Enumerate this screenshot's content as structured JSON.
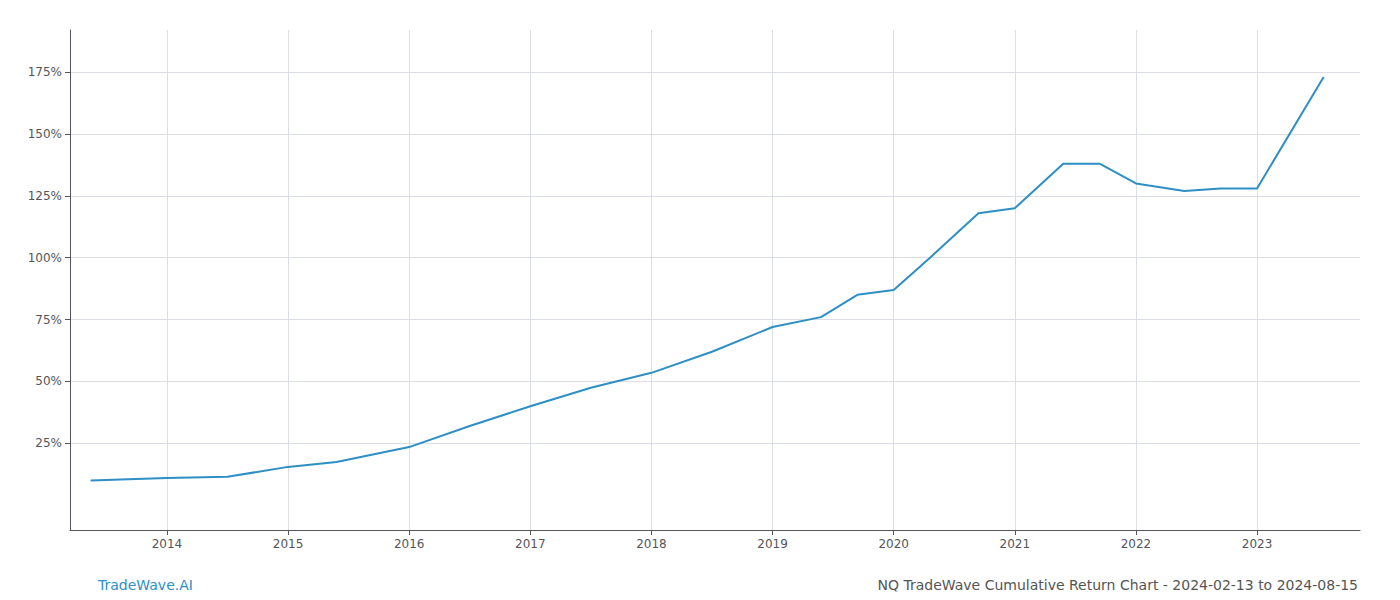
{
  "chart_data": {
    "type": "line",
    "x": [
      2013.37,
      2014.0,
      2014.5,
      2015.0,
      2015.4,
      2016.0,
      2016.5,
      2017.0,
      2017.5,
      2018.0,
      2018.5,
      2019.0,
      2019.4,
      2019.7,
      2020.0,
      2020.3,
      2020.7,
      2021.0,
      2021.4,
      2021.7,
      2022.0,
      2022.4,
      2022.7,
      2023.0,
      2023.55
    ],
    "values": [
      0.1,
      0.11,
      0.115,
      0.155,
      0.175,
      0.235,
      0.32,
      0.4,
      0.475,
      0.535,
      0.62,
      0.72,
      0.76,
      0.85,
      0.87,
      1.0,
      1.18,
      1.2,
      1.38,
      1.38,
      1.3,
      1.27,
      1.28,
      1.28,
      1.73
    ],
    "color": "#2d8fc4",
    "xlim": [
      2013.2,
      2023.85
    ],
    "ylim": [
      -0.1,
      1.92
    ],
    "xticks": [
      2014,
      2015,
      2016,
      2017,
      2018,
      2019,
      2020,
      2021,
      2022,
      2023
    ],
    "yticks": [
      {
        "value": 0.25,
        "label": "25%"
      },
      {
        "value": 0.5,
        "label": "50%"
      },
      {
        "value": 0.75,
        "label": "75%"
      },
      {
        "value": 1.0,
        "label": "100%"
      },
      {
        "value": 1.25,
        "label": "125%"
      },
      {
        "value": 1.5,
        "label": "150%"
      },
      {
        "value": 1.75,
        "label": "175%"
      }
    ],
    "grid": true,
    "annotations": [
      {
        "text": "TradeWave.AI",
        "color": "#2d8fc4"
      },
      {
        "text": "NQ TradeWave Cumulative Return Chart - 2024-02-13 to 2024-08-15",
        "color": "#555555"
      }
    ]
  }
}
